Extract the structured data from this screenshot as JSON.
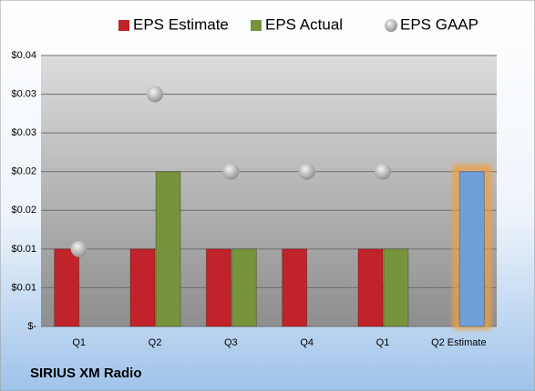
{
  "chart_data": {
    "type": "bar",
    "title": "SIRIUS XM Radio",
    "categories": [
      "Q1",
      "Q2",
      "Q3",
      "Q4",
      "Q1",
      "Q2 Estimate"
    ],
    "series": [
      {
        "name": "EPS Estimate",
        "color": "#c0232a",
        "values": [
          0.01,
          0.01,
          0.01,
          0.01,
          0.01,
          null
        ]
      },
      {
        "name": "EPS Actual",
        "color": "#77933c",
        "values": [
          null,
          0.02,
          0.01,
          null,
          0.01,
          0.02
        ],
        "colors": [
          "#77933c",
          "#77933c",
          "#77933c",
          "#77933c",
          "#77933c",
          "#6f9fd8"
        ]
      },
      {
        "name": "EPS GAAP",
        "type": "scatter",
        "color": "#b4b4b4",
        "values": [
          0.01,
          0.03,
          0.02,
          0.02,
          0.02,
          null
        ]
      }
    ],
    "ylim": [
      0,
      0.035
    ],
    "yticks": [
      {
        "value": 0,
        "label": "$-"
      },
      {
        "value": 0.005,
        "label": "$0.01"
      },
      {
        "value": 0.01,
        "label": "$0.01"
      },
      {
        "value": 0.015,
        "label": "$0.02"
      },
      {
        "value": 0.02,
        "label": "$0.02"
      },
      {
        "value": 0.025,
        "label": "$0.03"
      },
      {
        "value": 0.03,
        "label": "$0.03"
      },
      {
        "value": 0.035,
        "label": "$0.04"
      }
    ],
    "grid": true,
    "legend": "top"
  }
}
